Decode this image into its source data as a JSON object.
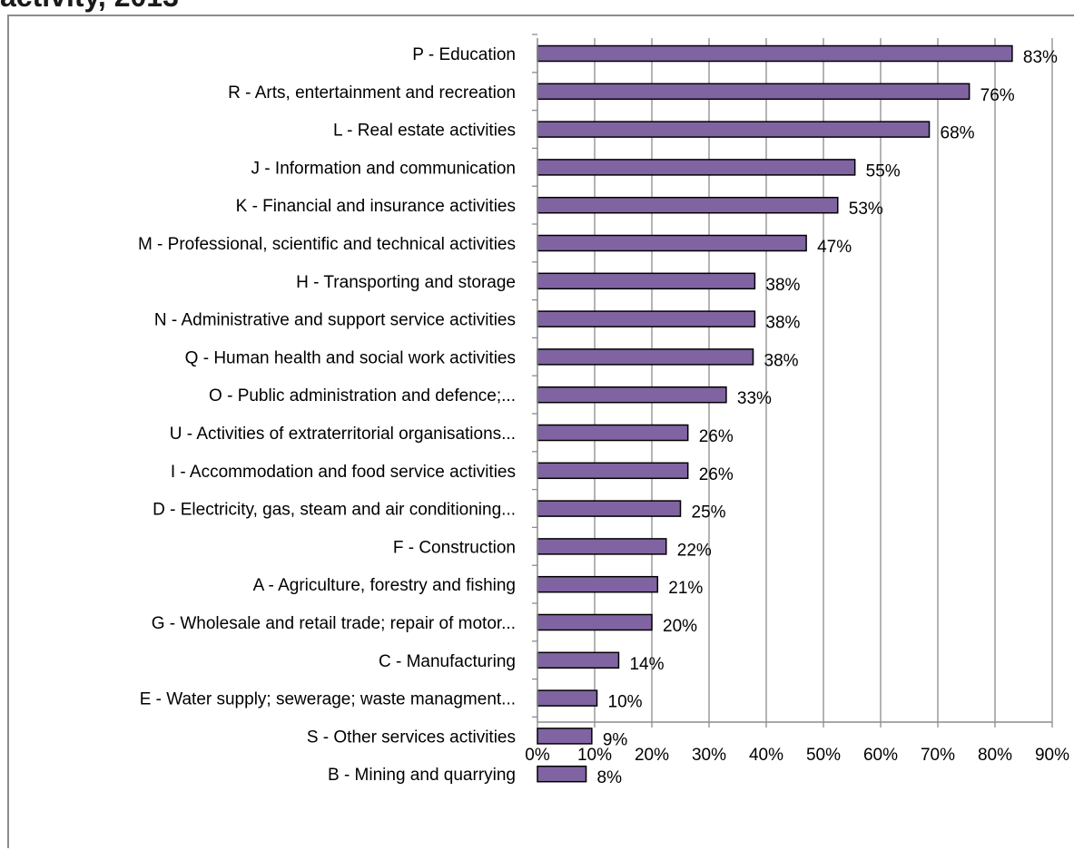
{
  "title_fragment": "activity, 2013",
  "chart_data": {
    "type": "bar",
    "orientation": "horizontal",
    "title": "",
    "xlabel": "",
    "ylabel": "",
    "xlim": [
      0,
      90
    ],
    "x_ticks": [
      "0%",
      "10%",
      "20%",
      "30%",
      "40%",
      "50%",
      "60%",
      "70%",
      "80%",
      "90%"
    ],
    "grid": "vertical gridlines",
    "legend": "none",
    "bar_color": "#8064a2",
    "bar_edge_color": "#000000",
    "categories": [
      "P - Education",
      "R - Arts, entertainment and recreation",
      "L - Real estate activities",
      "J - Information and communication",
      "K - Financial and insurance activities",
      "M - Professional, scientific and technical activities",
      "H - Transporting and storage",
      "N - Administrative and support service activities",
      "Q - Human health and social work activities",
      "O - Public administration and defence;...",
      "U - Activities of extraterritorial organisations...",
      "I - Accommodation and food service activities",
      "D - Electricity, gas, steam and air conditioning...",
      "F - Construction",
      "A - Agriculture, forestry and fishing",
      "G - Wholesale and retail trade; repair of motor...",
      "C - Manufacturing",
      "E - Water supply; sewerage; waste managment...",
      "S - Other services activities",
      "B - Mining and quarrying"
    ],
    "values": [
      83,
      75.5,
      68.5,
      55.5,
      52.5,
      47,
      38,
      38,
      37.7,
      33,
      26.3,
      26.3,
      25,
      22.5,
      21,
      20,
      14.2,
      10.4,
      9.5,
      8.5
    ],
    "data_labels": [
      "83%",
      "76%",
      "68%",
      "55%",
      "53%",
      "47%",
      "38%",
      "38%",
      "38%",
      "33%",
      "26%",
      "26%",
      "25%",
      "22%",
      "21%",
      "20%",
      "14%",
      "10%",
      "9%",
      "8%"
    ]
  }
}
